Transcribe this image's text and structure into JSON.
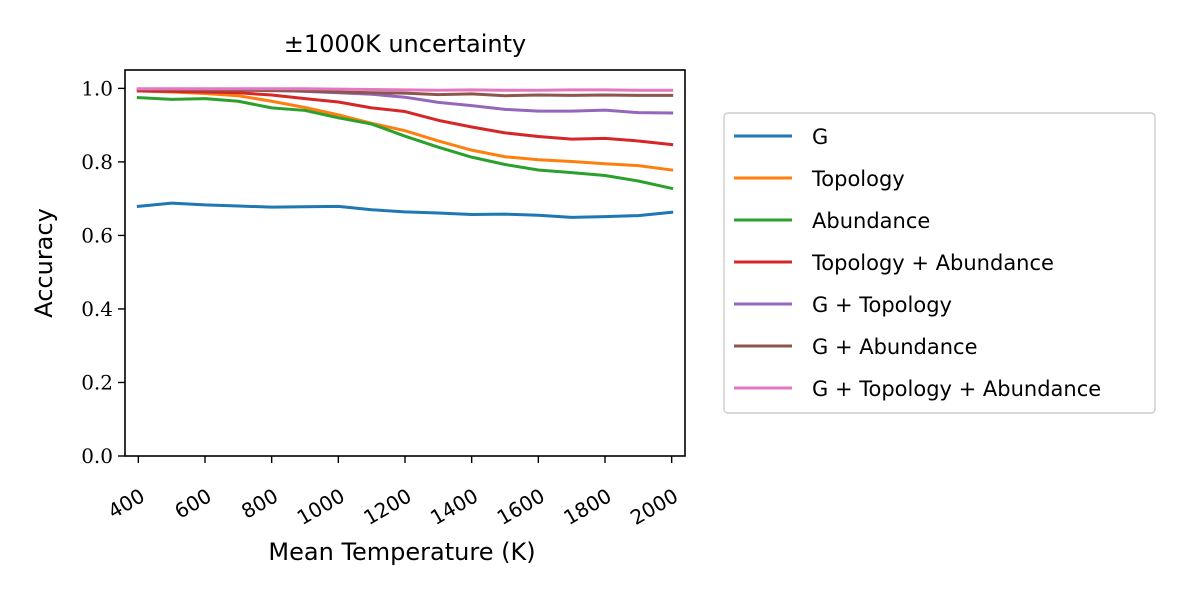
{
  "chart_data": {
    "type": "line",
    "title": "±1000K uncertainty",
    "xlabel": "Mean Temperature (K)",
    "ylabel": "Accuracy",
    "xlim": [
      360,
      2040
    ],
    "ylim": [
      0,
      1.05
    ],
    "x": [
      400,
      500,
      600,
      700,
      800,
      900,
      1000,
      1100,
      1200,
      1300,
      1400,
      1500,
      1600,
      1700,
      1800,
      1900,
      2000
    ],
    "xticks": [
      400,
      600,
      800,
      1000,
      1200,
      1400,
      1600,
      1800,
      2000
    ],
    "xtick_labels": [
      "400",
      "600",
      "800",
      "1000",
      "1200",
      "1400",
      "1600",
      "1800",
      "2000"
    ],
    "yticks": [
      0,
      0.2,
      0.4,
      0.6,
      0.8,
      1.0
    ],
    "ytick_labels": [
      "0.0",
      "0.2",
      "0.4",
      "0.6",
      "0.8",
      "1.0"
    ],
    "grid": false,
    "legend_position": "right, outside plot",
    "series": [
      {
        "name": "G",
        "color": "#1f77b4",
        "values": [
          0.679,
          0.688,
          0.683,
          0.68,
          0.677,
          0.678,
          0.679,
          0.67,
          0.664,
          0.661,
          0.657,
          0.658,
          0.655,
          0.649,
          0.651,
          0.654,
          0.663
        ]
      },
      {
        "name": "Topology",
        "color": "#ff7f0e",
        "values": [
          0.993,
          0.99,
          0.986,
          0.98,
          0.965,
          0.948,
          0.928,
          0.905,
          0.885,
          0.857,
          0.832,
          0.814,
          0.806,
          0.801,
          0.795,
          0.79,
          0.778
        ]
      },
      {
        "name": "Abundance",
        "color": "#2ca02c",
        "values": [
          0.975,
          0.97,
          0.972,
          0.965,
          0.947,
          0.94,
          0.92,
          0.903,
          0.87,
          0.84,
          0.813,
          0.793,
          0.778,
          0.771,
          0.763,
          0.748,
          0.728
        ]
      },
      {
        "name": "Topology + Abundance",
        "color": "#d62728",
        "values": [
          0.993,
          0.992,
          0.99,
          0.988,
          0.982,
          0.972,
          0.963,
          0.947,
          0.937,
          0.913,
          0.895,
          0.879,
          0.869,
          0.862,
          0.864,
          0.857,
          0.847
        ]
      },
      {
        "name": "G + Topology",
        "color": "#9467bd",
        "values": [
          0.998,
          0.998,
          0.997,
          0.996,
          0.995,
          0.992,
          0.988,
          0.984,
          0.976,
          0.962,
          0.953,
          0.943,
          0.938,
          0.938,
          0.941,
          0.934,
          0.933
        ]
      },
      {
        "name": "G + Abundance",
        "color": "#8c564b",
        "values": [
          0.998,
          0.997,
          0.996,
          0.995,
          0.994,
          0.993,
          0.99,
          0.988,
          0.987,
          0.983,
          0.985,
          0.98,
          0.982,
          0.981,
          0.982,
          0.981,
          0.981
        ]
      },
      {
        "name": "G + Topology + Abundance",
        "color": "#e377c2",
        "values": [
          0.999,
          0.999,
          0.999,
          0.999,
          0.999,
          0.999,
          0.998,
          0.997,
          0.996,
          0.995,
          0.996,
          0.995,
          0.995,
          0.996,
          0.996,
          0.995,
          0.995
        ]
      }
    ]
  }
}
